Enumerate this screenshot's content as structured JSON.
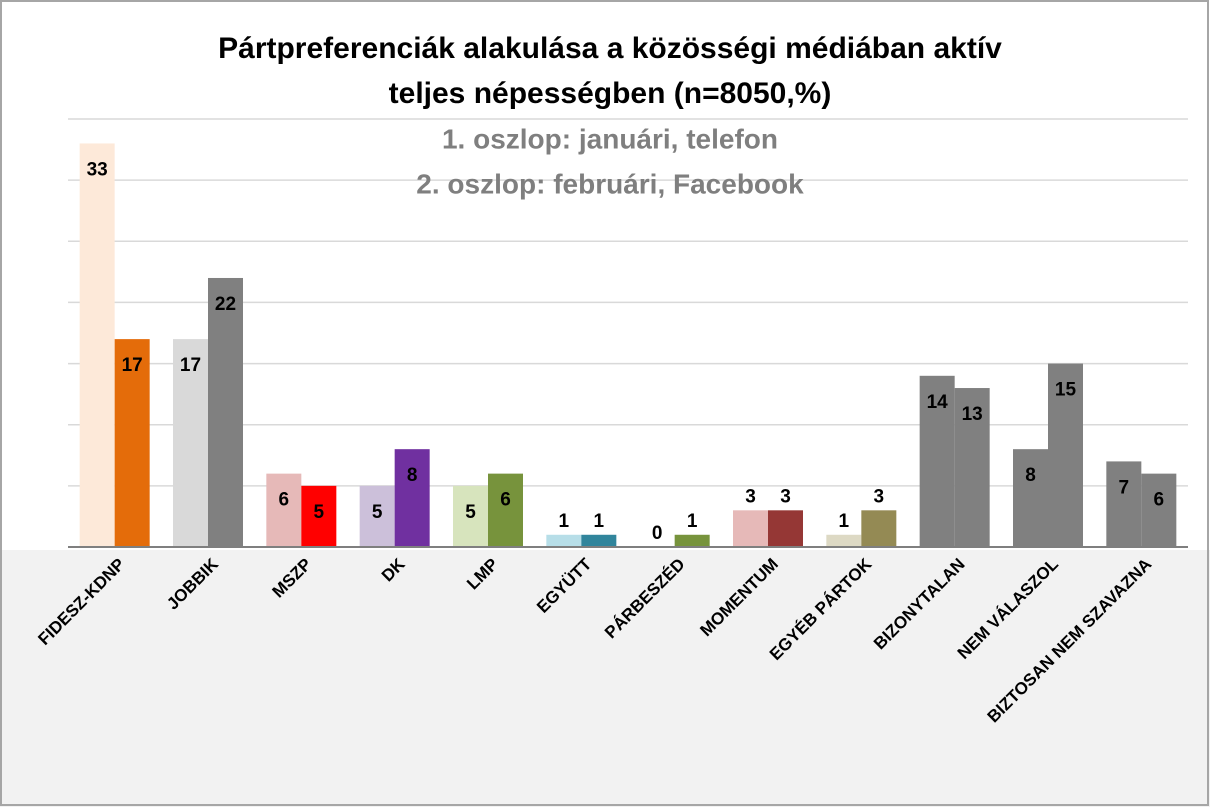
{
  "chart_data": {
    "type": "bar",
    "title_lines": [
      "Pártpreferenciák alakulása a közösségi médiában aktív",
      "teljes népességben (n=8050,%)"
    ],
    "subtitle_lines": [
      "1. oszlop: januári, telefon",
      "2. oszlop: februári, Facebook"
    ],
    "categories": [
      "FIDESZ-KDNP",
      "JOBBIK",
      "MSZP",
      "DK",
      "LMP",
      "EGYÜTT",
      "PÁRBESZÉD",
      "MOMENTUM",
      "EGYÉB PÁRTOK",
      "BIZONYTALAN",
      "NEM VÁLASZOL",
      "BIZTOSAN NEM SZAVAZNA"
    ],
    "series": [
      {
        "values": [
          33,
          17,
          6,
          5,
          5,
          1,
          0,
          3,
          1,
          14,
          8,
          7
        ],
        "colors": [
          "#fde9d9",
          "#d9d9d9",
          "#e6b9b8",
          "#ccc0da",
          "#d7e4bd",
          "#b7dee8",
          "#c3d69b",
          "#e6b9b8",
          "#ddd9c4",
          "#808080",
          "#808080",
          "#808080"
        ]
      },
      {
        "values": [
          17,
          22,
          5,
          8,
          6,
          1,
          1,
          3,
          3,
          13,
          15,
          6
        ],
        "colors": [
          "#e46c0a",
          "#808080",
          "#ff0000",
          "#7030a0",
          "#77933c",
          "#31859c",
          "#77933c",
          "#953735",
          "#948a54",
          "#808080",
          "#808080",
          "#808080"
        ]
      }
    ],
    "ylim": [
      0,
      35
    ],
    "yticks": [
      0,
      5,
      10,
      15,
      20,
      25,
      30,
      35
    ],
    "grid": true
  }
}
